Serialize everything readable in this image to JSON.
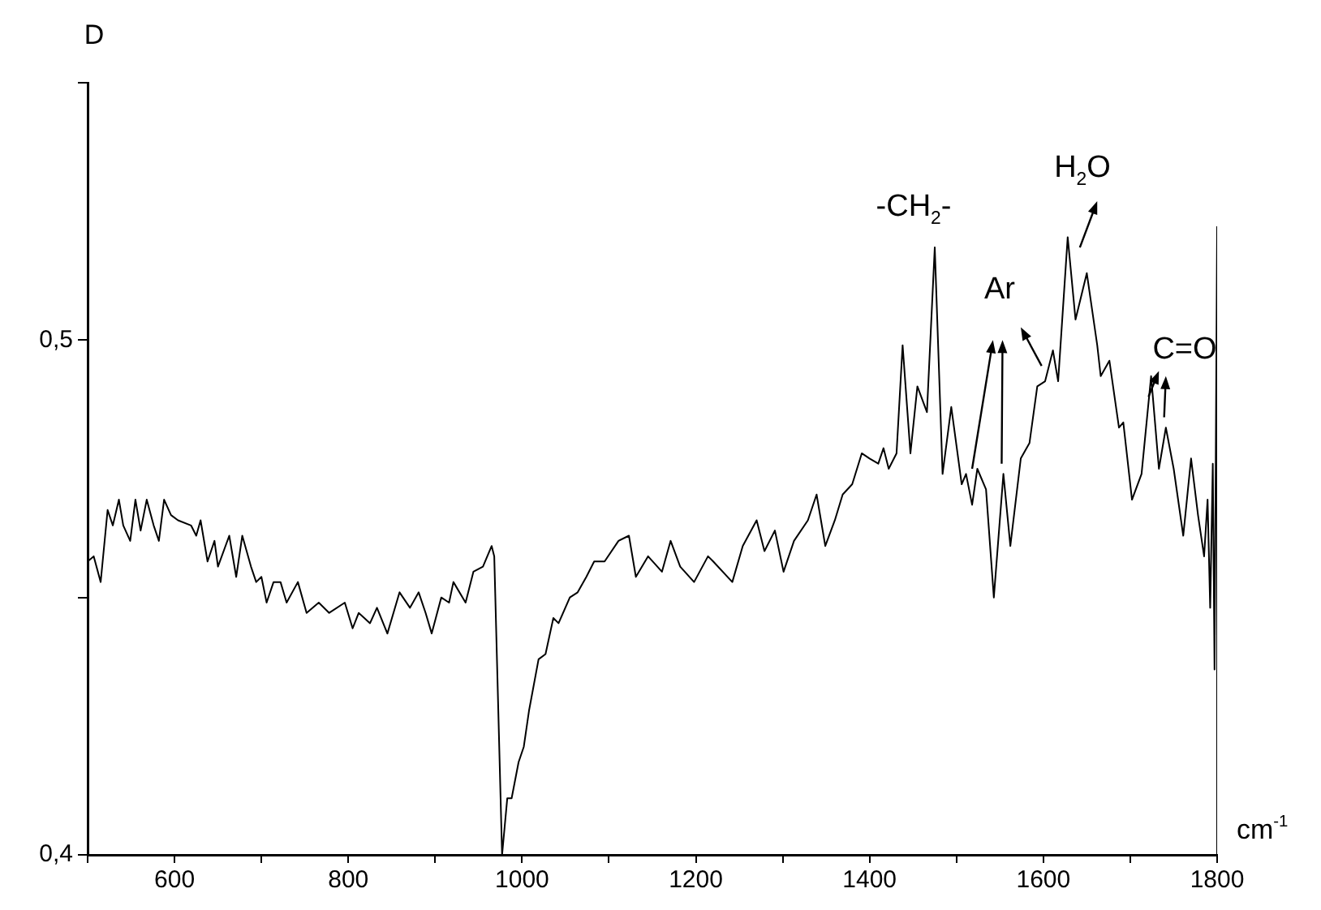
{
  "chart_data": {
    "type": "line",
    "xlabel": "cm$^{-1}$",
    "ylabel": "D",
    "legend": false,
    "x": [
      500,
      507,
      515,
      523,
      529,
      536,
      541,
      549,
      555,
      561,
      568,
      576,
      582,
      588,
      596,
      604,
      619,
      625,
      630,
      638,
      646,
      650,
      663,
      671,
      678,
      688,
      694,
      700,
      706,
      714,
      722,
      729,
      742,
      752,
      766,
      778,
      796,
      805,
      812,
      825,
      833,
      845,
      859,
      871,
      881,
      889,
      896,
      907,
      916,
      921,
      935,
      944,
      955,
      965,
      968,
      977,
      983,
      988,
      996,
      1002,
      1008,
      1019,
      1027,
      1036,
      1042,
      1055,
      1064,
      1074,
      1083,
      1095,
      1111,
      1123,
      1131,
      1145,
      1161,
      1171,
      1182,
      1198,
      1214,
      1220,
      1242,
      1254,
      1270,
      1279,
      1291,
      1301,
      1313,
      1329,
      1339,
      1349,
      1360,
      1369,
      1380,
      1391,
      1400,
      1410,
      1416,
      1422,
      1431,
      1438,
      1447,
      1455,
      1466,
      1475,
      1484,
      1494,
      1506,
      1511,
      1518,
      1524,
      1534,
      1543,
      1554,
      1562,
      1574,
      1584,
      1593,
      1602,
      1611,
      1617,
      1628,
      1637,
      1650,
      1662,
      1666,
      1676,
      1687,
      1692,
      1702,
      1713,
      1724,
      1733,
      1741,
      1750,
      1761,
      1770,
      1778,
      1785,
      1789,
      1792,
      1795,
      1797,
      1800,
      1800
    ],
    "series": [
      {
        "color": "#000000",
        "values": [
          0.457,
          0.458,
          0.453,
          0.467,
          0.464,
          0.469,
          0.464,
          0.461,
          0.469,
          0.463,
          0.469,
          0.464,
          0.461,
          0.469,
          0.466,
          0.465,
          0.464,
          0.462,
          0.465,
          0.457,
          0.461,
          0.456,
          0.462,
          0.454,
          0.462,
          0.456,
          0.453,
          0.454,
          0.449,
          0.453,
          0.453,
          0.449,
          0.453,
          0.447,
          0.449,
          0.447,
          0.449,
          0.444,
          0.447,
          0.445,
          0.448,
          0.443,
          0.451,
          0.448,
          0.451,
          0.447,
          0.443,
          0.45,
          0.449,
          0.453,
          0.449,
          0.455,
          0.456,
          0.46,
          0.458,
          0.4,
          0.411,
          0.411,
          0.418,
          0.421,
          0.428,
          0.438,
          0.439,
          0.446,
          0.445,
          0.45,
          0.451,
          0.454,
          0.457,
          0.457,
          0.461,
          0.462,
          0.454,
          0.458,
          0.455,
          0.461,
          0.456,
          0.453,
          0.458,
          0.457,
          0.453,
          0.46,
          0.465,
          0.459,
          0.463,
          0.455,
          0.461,
          0.465,
          0.47,
          0.46,
          0.465,
          0.47,
          0.472,
          0.478,
          0.477,
          0.476,
          0.479,
          0.475,
          0.478,
          0.499,
          0.478,
          0.491,
          0.486,
          0.518,
          0.474,
          0.487,
          0.472,
          0.474,
          0.468,
          0.475,
          0.471,
          0.45,
          0.474,
          0.46,
          0.477,
          0.48,
          0.491,
          0.492,
          0.498,
          0.492,
          0.52,
          0.504,
          0.513,
          0.499,
          0.493,
          0.496,
          0.483,
          0.484,
          0.469,
          0.474,
          0.493,
          0.475,
          0.483,
          0.475,
          0.462,
          0.477,
          0.466,
          0.458,
          0.469,
          0.448,
          0.476,
          0.436,
          0.522,
          0.4
        ]
      }
    ],
    "xlim": [
      500,
      1800
    ],
    "xticks": [
      {
        "value": 500,
        "label": null
      },
      600,
      {
        "value": 700,
        "label": null
      },
      800,
      {
        "value": 900,
        "label": null
      },
      1000,
      {
        "value": 1100,
        "label": null
      },
      1200,
      {
        "value": 1300,
        "label": null
      },
      1400,
      {
        "value": 1500,
        "label": null
      },
      1600,
      {
        "value": 1700,
        "label": null
      },
      1800
    ],
    "ylim": [
      0.4,
      0.55
    ],
    "yticks": [
      {
        "value": 0.4,
        "label": "0,4"
      },
      {
        "value": 0.45,
        "label": null
      },
      {
        "value": 0.5,
        "label": "0,5"
      },
      {
        "value": 0.55,
        "label": null
      }
    ],
    "annotations": [
      "-CH$_{2}$-",
      "Ar",
      "H$_{2}$O",
      "C=O"
    ]
  }
}
